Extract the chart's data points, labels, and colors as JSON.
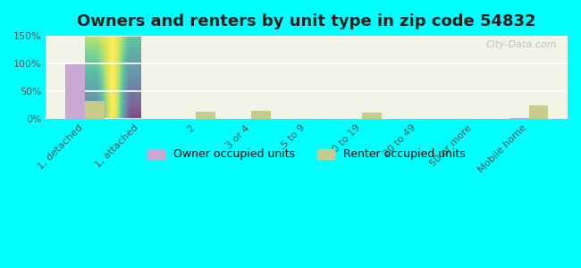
{
  "title": "Owners and renters by unit type in zip code 54832",
  "categories": [
    "1, detached",
    "1, attached",
    "2",
    "3 or 4",
    "5 to 9",
    "10 to 19",
    "20 to 49",
    "50 or more",
    "Mobile home"
  ],
  "owner_values": [
    98,
    0,
    0,
    0,
    0,
    0,
    0,
    0,
    2
  ],
  "renter_values": [
    32,
    0,
    13,
    14,
    0,
    11,
    0,
    0,
    24
  ],
  "owner_color": "#c9a8d4",
  "renter_color": "#c8cc8a",
  "background_color": "#00ffff",
  "plot_bg_color_top": "#f0f5e8",
  "plot_bg_color_bottom": "#e8f5e0",
  "ylim": [
    0,
    150
  ],
  "yticks": [
    0,
    50,
    100,
    150
  ],
  "ytick_labels": [
    "0%",
    "50%",
    "100%",
    "150%"
  ],
  "bar_width": 0.35,
  "title_fontsize": 13,
  "tick_fontsize": 8,
  "legend_fontsize": 9,
  "watermark": "City-Data.com"
}
